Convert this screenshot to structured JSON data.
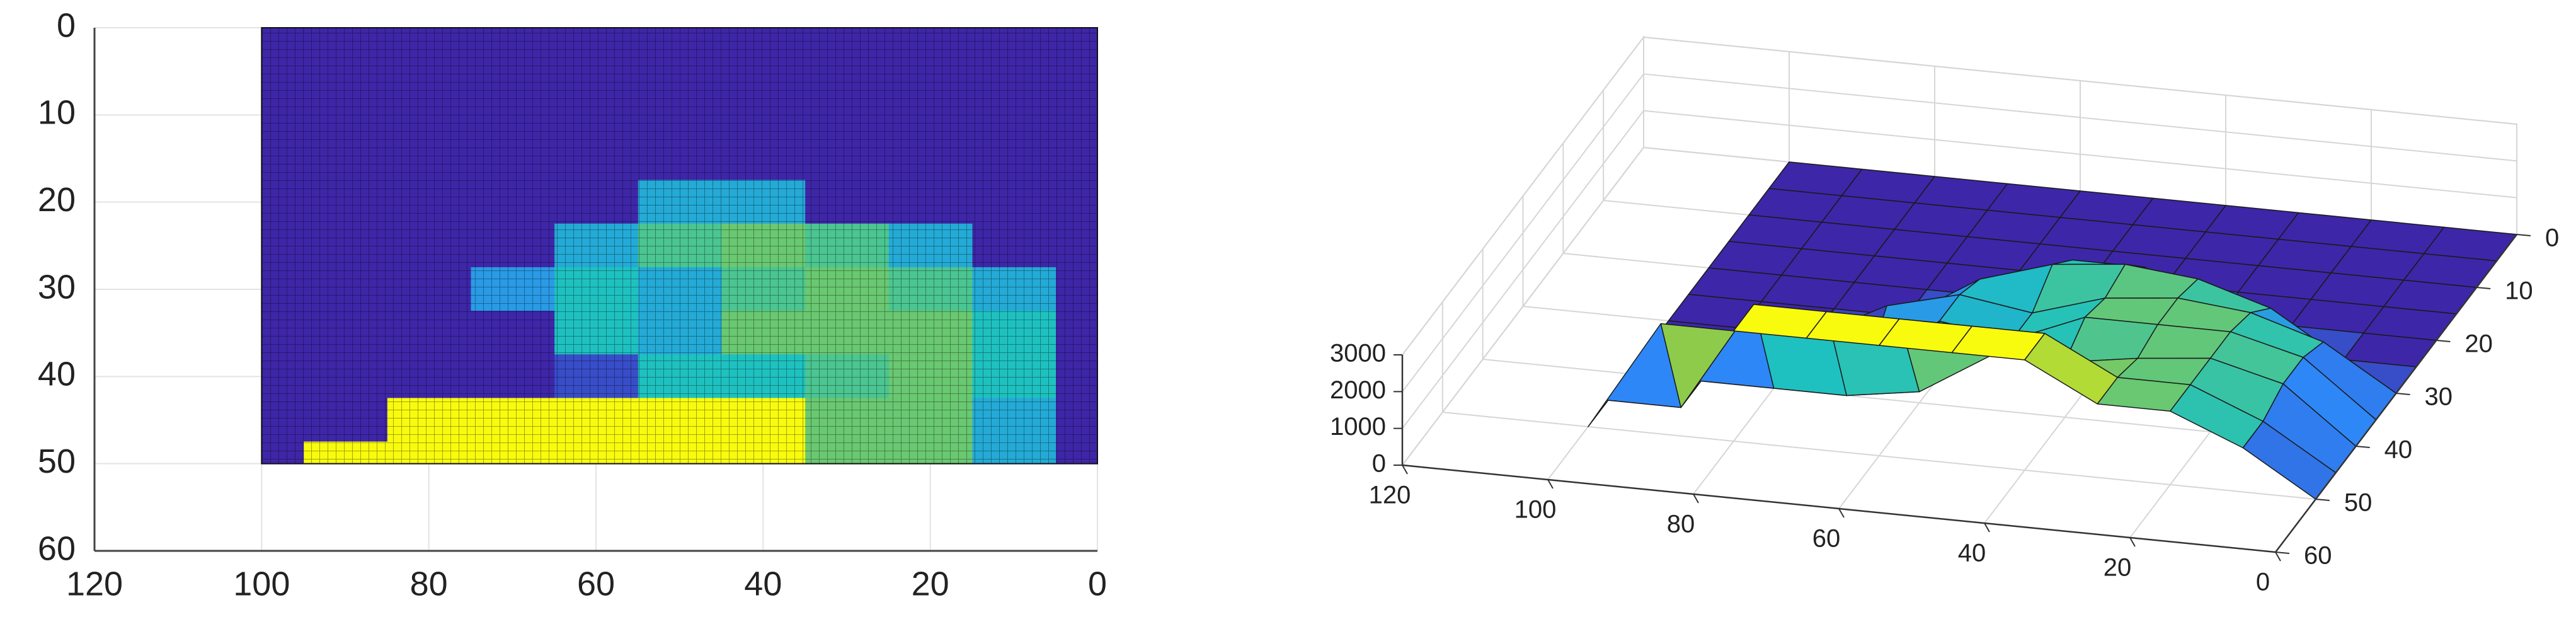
{
  "chart_data": [
    {
      "type": "heatmap",
      "x": [
        0,
        10,
        20,
        30,
        40,
        50,
        60,
        70,
        80,
        90,
        100
      ],
      "y": [
        0,
        5,
        10,
        15,
        20,
        25,
        30,
        35,
        40,
        45,
        50
      ],
      "z": [
        [
          0,
          0,
          0,
          0,
          0,
          0,
          0,
          0,
          0,
          0,
          0
        ],
        [
          0,
          0,
          0,
          0,
          0,
          0,
          0,
          0,
          0,
          0,
          0
        ],
        [
          0,
          0,
          0,
          0,
          0,
          0,
          0,
          0,
          0,
          0,
          0
        ],
        [
          0,
          0,
          0,
          0,
          0,
          0,
          0,
          0,
          0,
          0,
          0
        ],
        [
          0,
          0,
          0,
          0,
          1200,
          1200,
          0,
          0,
          0,
          0,
          0
        ],
        [
          0,
          0,
          1200,
          1800,
          2000,
          1800,
          1200,
          0,
          0,
          0,
          0
        ],
        [
          0,
          1200,
          1800,
          2000,
          1800,
          1200,
          1500,
          1000,
          0,
          0,
          0
        ],
        [
          0,
          1500,
          2000,
          2000,
          2000,
          1200,
          1500,
          0,
          0,
          0,
          0
        ],
        [
          0,
          1500,
          2000,
          1800,
          1500,
          1500,
          300,
          0,
          0,
          0,
          0
        ],
        [
          0,
          1200,
          2000,
          2000,
          3000,
          3000,
          3000,
          3000,
          3000,
          0,
          0
        ],
        [
          0,
          1200,
          2000,
          2000,
          3000,
          3000,
          3000,
          3000,
          3000,
          3000,
          0
        ]
      ],
      "xlim": [
        120,
        0
      ],
      "ylim": [
        0,
        60
      ],
      "xticks": [
        120,
        100,
        80,
        60,
        40,
        20,
        0
      ],
      "yticks": [
        0,
        10,
        20,
        30,
        40,
        50,
        60
      ],
      "zlim": [
        0,
        3000
      ],
      "colormap": [
        "#3e26a8",
        "#2e87f7",
        "#1ec1c0",
        "#8fcb4a",
        "#f9fb0e"
      ],
      "grid": true
    },
    {
      "type": "surface3d",
      "x": [
        0,
        10,
        20,
        30,
        40,
        50,
        60,
        70,
        80,
        90,
        100
      ],
      "y": [
        0,
        5,
        10,
        15,
        20,
        25,
        30,
        35,
        40,
        45,
        50
      ],
      "z": [
        [
          0,
          0,
          0,
          0,
          0,
          0,
          0,
          0,
          0,
          0,
          0
        ],
        [
          0,
          0,
          0,
          0,
          0,
          0,
          0,
          0,
          0,
          0,
          0
        ],
        [
          0,
          0,
          0,
          0,
          0,
          0,
          0,
          0,
          0,
          0,
          0
        ],
        [
          0,
          0,
          0,
          0,
          0,
          0,
          0,
          0,
          0,
          0,
          0
        ],
        [
          0,
          0,
          0,
          0,
          1200,
          1200,
          0,
          0,
          0,
          0,
          0
        ],
        [
          0,
          0,
          1200,
          1800,
          2000,
          1800,
          1200,
          0,
          0,
          0,
          0
        ],
        [
          0,
          1200,
          1800,
          2000,
          1800,
          1200,
          1500,
          1000,
          0,
          0,
          0
        ],
        [
          0,
          1500,
          2000,
          2000,
          2000,
          1200,
          1500,
          0,
          0,
          0,
          0
        ],
        [
          0,
          1500,
          2000,
          1800,
          1500,
          1500,
          300,
          0,
          0,
          0,
          0
        ],
        [
          0,
          1200,
          2000,
          2000,
          3000,
          3000,
          3000,
          3000,
          3000,
          0,
          0
        ],
        [
          0,
          1200,
          2000,
          2000,
          3000,
          3000,
          3000,
          3000,
          3000,
          3000,
          0
        ]
      ],
      "xlim": [
        0,
        120
      ],
      "ylim": [
        0,
        60
      ],
      "zlim": [
        0,
        3000
      ],
      "xticks": [
        0,
        20,
        40,
        60,
        80,
        100,
        120
      ],
      "yticks": [
        0,
        10,
        20,
        30,
        40,
        50,
        60
      ],
      "zticks": [
        0,
        1000,
        2000,
        3000
      ],
      "colormap": [
        "#3e26a8",
        "#2e87f7",
        "#1ec1c0",
        "#8fcb4a",
        "#f9fb0e"
      ],
      "grid": true
    }
  ]
}
